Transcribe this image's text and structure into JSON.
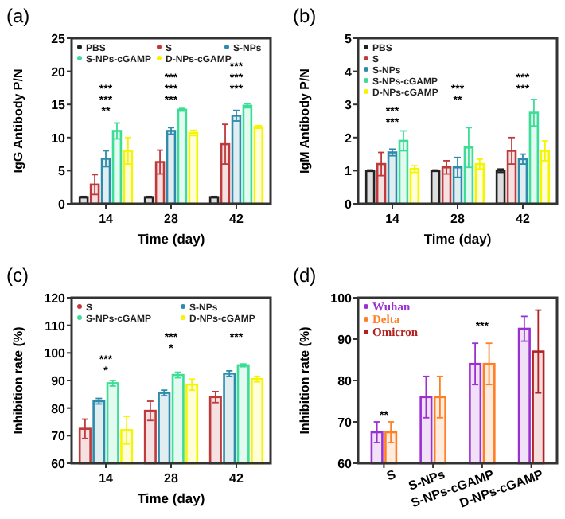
{
  "chart_data": [
    {
      "type": "bar",
      "title": "(a)",
      "xlabel": "Time (day)",
      "ylabel": "IgG Antibody P/N",
      "categories": [
        "14",
        "28",
        "42"
      ],
      "ylim": [
        0,
        25
      ],
      "yticks": [
        0,
        5,
        10,
        15,
        20,
        25
      ],
      "legend": "top",
      "series": [
        {
          "name": "PBS",
          "color": "#222222",
          "values": [
            1,
            1,
            1
          ],
          "errors": [
            0.1,
            0.1,
            0.1
          ]
        },
        {
          "name": "S",
          "color": "#c0393b",
          "values": [
            2.9,
            6.3,
            9.0
          ],
          "errors": [
            1.5,
            1.8,
            3
          ]
        },
        {
          "name": "S-NPs",
          "color": "#2e8bab",
          "values": [
            6.8,
            11.0,
            13.3
          ],
          "errors": [
            1.2,
            0.5,
            0.8
          ]
        },
        {
          "name": "S-NPs-cGAMP",
          "color": "#3ddc97",
          "values": [
            11.0,
            14.2,
            14.8
          ],
          "errors": [
            1.2,
            0.2,
            0.3
          ]
        },
        {
          "name": "D-NPs-cGAMP",
          "color": "#f5f500",
          "values": [
            8.0,
            10.7,
            11.6
          ],
          "errors": [
            2,
            0.4,
            0.2
          ]
        }
      ],
      "annotations": [
        "***",
        "***",
        "**",
        "***",
        "***",
        "***",
        "***",
        "***",
        "***"
      ]
    },
    {
      "type": "bar",
      "title": "(b)",
      "xlabel": "Time (day)",
      "ylabel": "IgM Antibody P/N",
      "categories": [
        "14",
        "28",
        "42"
      ],
      "ylim": [
        0,
        5
      ],
      "yticks": [
        0,
        1,
        2,
        3,
        4,
        5
      ],
      "legend": "top left",
      "series": [
        {
          "name": "PBS",
          "color": "#222222",
          "values": [
            1,
            1,
            1
          ],
          "errors": [
            0.02,
            0.02,
            0.05
          ]
        },
        {
          "name": "S",
          "color": "#c0393b",
          "values": [
            1.2,
            1.1,
            1.6
          ],
          "errors": [
            0.35,
            0.2,
            0.4
          ]
        },
        {
          "name": "S-NPs",
          "color": "#2e8bab",
          "values": [
            1.55,
            1.1,
            1.35
          ],
          "errors": [
            0.1,
            0.3,
            0.15
          ]
        },
        {
          "name": "S-NPs-cGAMP",
          "color": "#3ddc97",
          "values": [
            1.9,
            1.7,
            2.75
          ],
          "errors": [
            0.3,
            0.6,
            0.4
          ]
        },
        {
          "name": "D-NPs-cGAMP",
          "color": "#f5f500",
          "values": [
            1.05,
            1.2,
            1.6
          ],
          "errors": [
            0.1,
            0.15,
            0.3
          ]
        }
      ],
      "annotations": [
        "***",
        "***",
        "***",
        "**",
        "***",
        "***"
      ]
    },
    {
      "type": "bar",
      "title": "(c)",
      "xlabel": "Time (day)",
      "ylabel": "Inhibition rate (%)",
      "categories": [
        "14",
        "28",
        "42"
      ],
      "ylim": [
        60,
        120
      ],
      "yticks": [
        60,
        70,
        80,
        90,
        100,
        110,
        120
      ],
      "legend": "top",
      "series": [
        {
          "name": "S",
          "color": "#c0393b",
          "values": [
            72.5,
            79,
            84
          ],
          "errors": [
            3.5,
            3.5,
            2
          ]
        },
        {
          "name": "S-NPs",
          "color": "#2e8bab",
          "values": [
            82.5,
            85.5,
            92.5
          ],
          "errors": [
            1,
            1,
            1
          ]
        },
        {
          "name": "S-NPs-cGAMP",
          "color": "#3ddc97",
          "values": [
            89,
            92,
            95.5
          ],
          "errors": [
            1,
            1,
            0.5
          ]
        },
        {
          "name": "D-NPs-cGAMP",
          "color": "#f5f500",
          "values": [
            72,
            88.5,
            90.5
          ],
          "errors": [
            5,
            2,
            1
          ]
        }
      ],
      "annotations": [
        "***",
        "*",
        "***",
        "*",
        "***"
      ]
    },
    {
      "type": "bar",
      "title": "(d)",
      "ylabel": "Inhibition rate (%)",
      "categories": [
        "S",
        "S-NPs",
        "S-NPs-cGAMP",
        "D-NPs-cGAMP"
      ],
      "ylim": [
        60,
        100
      ],
      "yticks": [
        60,
        70,
        80,
        90,
        100
      ],
      "legend": "top left",
      "series": [
        {
          "name": "Wuhan",
          "color": "#9b30d0",
          "values": [
            67.5,
            76,
            84,
            92.5
          ],
          "errors": [
            2.5,
            5,
            5,
            3
          ]
        },
        {
          "name": "Delta",
          "color": "#ff7f27",
          "values": [
            67.5,
            76,
            84,
            null
          ],
          "errors": [
            2.5,
            5,
            5,
            null
          ]
        },
        {
          "name": "Omicron",
          "color": "#b22222",
          "values": [
            null,
            null,
            null,
            87
          ],
          "errors": [
            null,
            null,
            null,
            10
          ]
        }
      ],
      "annotations": [
        "**",
        "***"
      ]
    }
  ]
}
